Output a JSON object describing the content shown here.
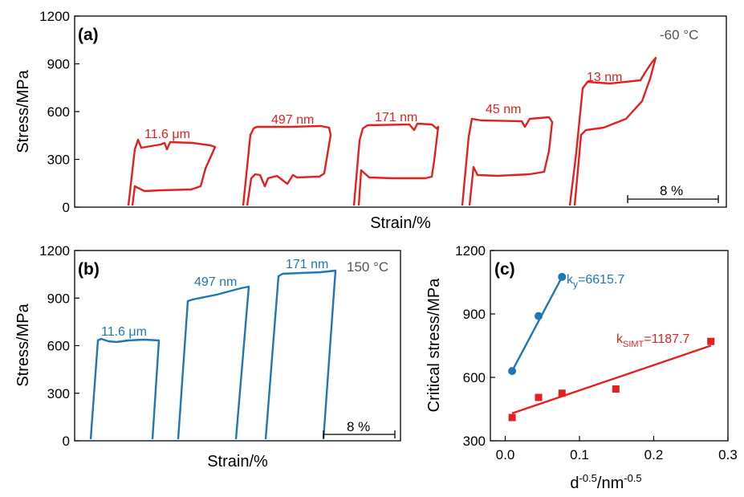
{
  "chart_data": [
    {
      "id": "a",
      "type": "line",
      "panel_label": "(a)",
      "condition": "-60 °C",
      "xlabel": "Strain/%",
      "ylabel": "Stress/MPa",
      "ylim": [
        0,
        1200
      ],
      "yticks": [
        0,
        300,
        600,
        900,
        1200
      ],
      "scale_bar_label": "8 %",
      "scale_bar_strain": 8,
      "series": [
        {
          "name": "11.6 μm",
          "color": "#e4201f",
          "stress": [
            0,
            400,
            405,
            400,
            100,
            0
          ]
        },
        {
          "name": "497 nm",
          "color": "#e4201f",
          "stress": [
            0,
            500,
            515,
            505,
            195,
            0
          ]
        },
        {
          "name": "171 nm",
          "color": "#e4201f",
          "stress": [
            0,
            525,
            530,
            520,
            185,
            0
          ]
        },
        {
          "name": "45 nm",
          "color": "#e4201f",
          "stress": [
            0,
            550,
            560,
            570,
            195,
            0
          ]
        },
        {
          "name": "13 nm",
          "color": "#e4201f",
          "stress": [
            0,
            780,
            790,
            945,
            480,
            0
          ]
        }
      ]
    },
    {
      "id": "b",
      "type": "line",
      "panel_label": "(b)",
      "condition": "150 °C",
      "xlabel": "Strain/%",
      "ylabel": "Stress/MPa",
      "ylim": [
        0,
        1200
      ],
      "yticks": [
        0,
        300,
        600,
        900,
        1200
      ],
      "scale_bar_label": "8 %",
      "scale_bar_strain": 8,
      "series": [
        {
          "name": "11.6 μm",
          "color": "#1f77b4",
          "stress": [
            0,
            640,
            625,
            645,
            0
          ]
        },
        {
          "name": "497 nm",
          "color": "#1f77b4",
          "stress": [
            0,
            900,
            940,
            980,
            0
          ]
        },
        {
          "name": "171 nm",
          "color": "#1f77b4",
          "stress": [
            0,
            1060,
            1075,
            1085,
            0
          ]
        }
      ]
    },
    {
      "id": "c",
      "type": "scatter",
      "panel_label": "(c)",
      "xlabel_base": "d",
      "xlabel_exp1": "-0.5",
      "xlabel_mid": "/nm",
      "xlabel_exp2": "-0.5",
      "ylabel": "Critical stress/MPa",
      "xlim": [
        -0.02,
        0.3
      ],
      "ylim": [
        300,
        1200
      ],
      "xticks": [
        0.0,
        0.1,
        0.2,
        0.3
      ],
      "xticklabels": [
        "0.0",
        "0.1",
        "0.2",
        "0.3"
      ],
      "yticks": [
        300,
        600,
        900,
        1200
      ],
      "series": [
        {
          "name": "ky",
          "marker": "circle",
          "color": "#1f77b4",
          "label_k": "k",
          "label_sub": "y",
          "label_val": "=6615.7",
          "x": [
            0.0093,
            0.0449,
            0.0765
          ],
          "y": [
            630,
            890,
            1075
          ],
          "fit": {
            "x": [
              0.0093,
              0.0765
            ],
            "y": [
              630,
              1075
            ]
          }
        },
        {
          "name": "kSIMT",
          "marker": "square",
          "color": "#e4201f",
          "label_k": "k",
          "label_sub": "SIMT",
          "label_val": "=1187.7",
          "x": [
            0.0093,
            0.0449,
            0.0765,
            0.149,
            0.277
          ],
          "y": [
            410,
            505,
            525,
            545,
            770
          ],
          "fit": {
            "x": [
              0.0093,
              0.277
            ],
            "y": [
              430,
              750
            ]
          }
        }
      ]
    }
  ]
}
